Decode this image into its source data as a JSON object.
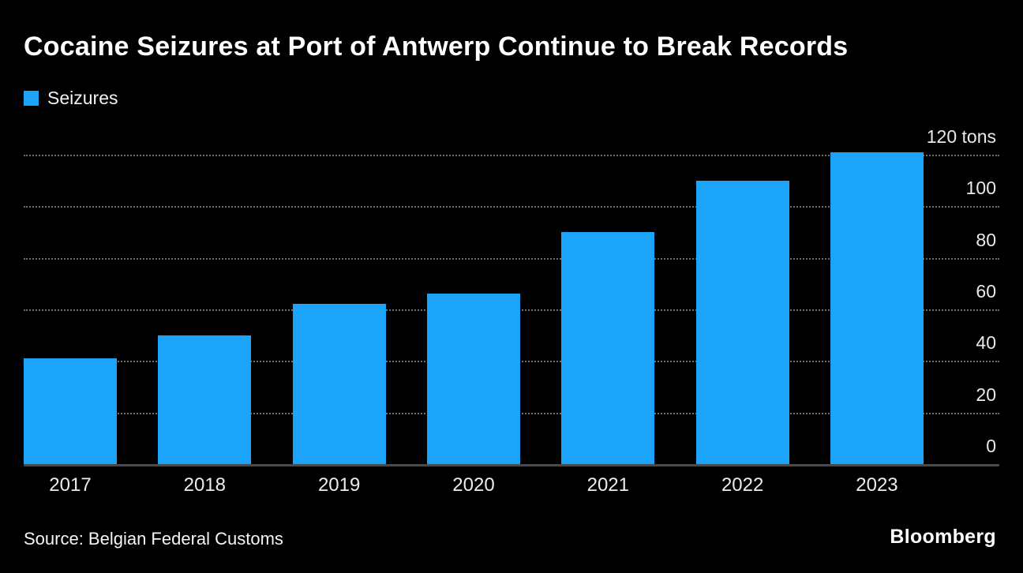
{
  "chart": {
    "title": "Cocaine Seizures at Port of Antwerp Continue to Break Records",
    "legend_label": "Seizures"
  },
  "footer": {
    "source": "Source: Belgian Federal Customs",
    "brand": "Bloomberg"
  },
  "colors": {
    "background": "#000000",
    "bar": "#1ca3fa",
    "gridline": "#6e6e6e",
    "baseline": "#4a4a4a",
    "text": "#ffffff"
  },
  "chart_data": {
    "type": "bar",
    "title": "Cocaine Seizures at Port of Antwerp Continue to Break Records",
    "series_name": "Seizures",
    "categories": [
      "2017",
      "2018",
      "2019",
      "2020",
      "2021",
      "2022",
      "2023"
    ],
    "values": [
      41,
      50,
      62,
      66,
      90,
      110,
      121
    ],
    "unit": "tons",
    "ylabel": "tons",
    "ylim": [
      0,
      120
    ],
    "yticks": [
      0,
      20,
      40,
      60,
      80,
      100,
      120
    ],
    "ytick_top_label": "120 tons",
    "axis_side": "right",
    "grid": "horizontal-dotted",
    "legend_position": "top-left",
    "background": "#000000",
    "bar_color": "#1ca3fa"
  }
}
